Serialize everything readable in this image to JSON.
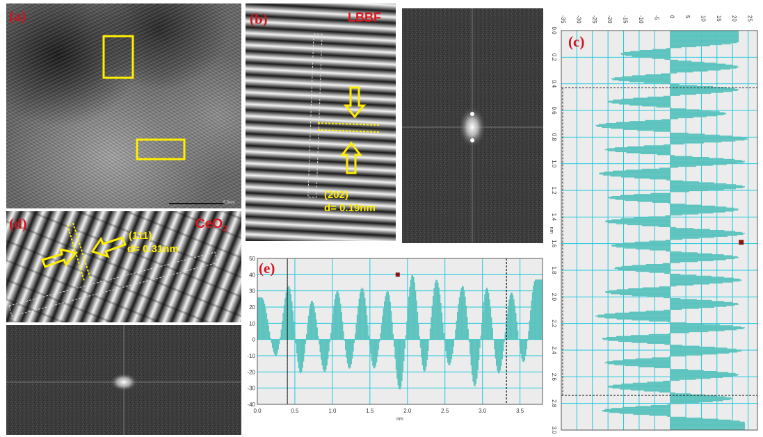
{
  "panels": {
    "a": {
      "label": "(a)",
      "scale_text": "5.0nm"
    },
    "b": {
      "label": "(b)",
      "tag": "LBBF",
      "plane": "(202)",
      "spacing": "d= 0.19nm"
    },
    "c": {
      "label": "(c)"
    },
    "d": {
      "label": "(d)",
      "tag_main": "CeO",
      "tag_sub": "2",
      "plane": "(111)",
      "spacing": "d= 0.31nm"
    },
    "e": {
      "label": "(e)"
    }
  },
  "colors": {
    "profile_fill": "#5cc3be",
    "grid": "#1ec8dc",
    "plot_bg": "#ececec",
    "label_red": "#d0141c",
    "annotation_yellow": "#ffee00"
  },
  "chart_data": [
    {
      "id": "e",
      "type": "area",
      "title": "",
      "xlabel": "nm",
      "ylabel": "",
      "xlim": [
        0,
        3.8
      ],
      "ylim": [
        -40,
        50
      ],
      "x_ticks": [
        "0.0",
        "0.5",
        "1.0",
        "1.5",
        "2.0",
        "2.5",
        "3.0",
        "3.5"
      ],
      "y_ticks": [
        "50",
        "40",
        "30",
        "20",
        "10",
        "0",
        "-10",
        "-20",
        "-30",
        "-40"
      ],
      "grid": true,
      "peaks": {
        "x": [
          0.05,
          0.41,
          0.72,
          1.06,
          1.39,
          1.73,
          2.06,
          2.38,
          2.73,
          3.05,
          3.38,
          3.7
        ],
        "y": [
          26,
          33,
          24,
          30,
          32,
          30,
          40,
          37,
          33,
          32,
          29,
          37
        ]
      },
      "valleys": {
        "x": [
          0.24,
          0.57,
          0.89,
          1.22,
          1.55,
          1.89,
          2.22,
          2.55,
          2.89,
          3.21,
          3.54
        ],
        "y": [
          -10,
          -21,
          -20,
          -18,
          -18,
          -31,
          -20,
          -16,
          -29,
          -21,
          -14
        ]
      },
      "marker": {
        "x": 1.87,
        "y": 40
      },
      "dashed_markers_x": [
        0.4,
        3.32
      ]
    },
    {
      "id": "c",
      "type": "area",
      "orientation": "horizontal",
      "title": "",
      "xlabel": "",
      "ylabel": "nm",
      "xlim": [
        -35,
        28
      ],
      "ylim": [
        0,
        3.0
      ],
      "x_ticks": [
        "-35",
        "-30",
        "-25",
        "-20",
        "-15",
        "-10",
        "-5",
        "0",
        "5",
        "10",
        "15",
        "20",
        "25"
      ],
      "y_ticks": [
        "0.0",
        "0.2",
        "0.4",
        "0.6",
        "0.8",
        "1.0",
        "1.2",
        "1.4",
        "1.6",
        "1.8",
        "2.0",
        "2.2",
        "2.4",
        "2.6",
        "2.8",
        "3.0"
      ],
      "grid": true,
      "peaks": {
        "y": [
          0.08,
          0.27,
          0.44,
          0.62,
          0.81,
          0.98,
          1.17,
          1.34,
          1.52,
          1.7,
          1.87,
          2.05,
          2.23,
          2.4,
          2.58,
          2.76,
          2.94
        ],
        "x": [
          22,
          22,
          22,
          18,
          25,
          24,
          24,
          22,
          24,
          22,
          23,
          22,
          24,
          23,
          22,
          20,
          24
        ]
      },
      "valleys": {
        "y": [
          0.17,
          0.36,
          0.53,
          0.71,
          0.89,
          1.07,
          1.25,
          1.43,
          1.61,
          1.78,
          1.96,
          2.14,
          2.31,
          2.49,
          2.67,
          2.85
        ],
        "x": [
          -16,
          -19,
          -20,
          -24,
          -21,
          -23,
          -20,
          -21,
          -19,
          -18,
          -21,
          -24,
          -22,
          -21,
          -20,
          -22
        ]
      },
      "marker": {
        "x": 22.8,
        "y": 1.59
      },
      "dashed_markers_y": [
        0.43,
        2.74
      ]
    }
  ]
}
